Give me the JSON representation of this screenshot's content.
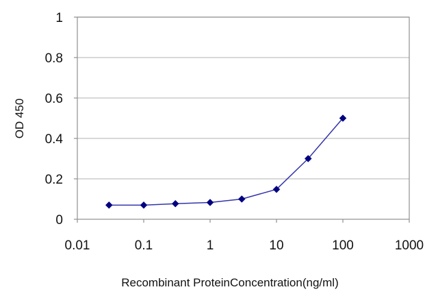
{
  "chart_data": {
    "type": "line",
    "xscale": "log",
    "xlim": [
      0.01,
      1000
    ],
    "ylim": [
      0,
      1
    ],
    "xticks": [
      0.01,
      0.1,
      1,
      10,
      100,
      1000
    ],
    "xtick_labels": [
      "0.01",
      "0.1",
      "1",
      "10",
      "100",
      "1000"
    ],
    "yticks": [
      0,
      0.2,
      0.4,
      0.6,
      0.8,
      1
    ],
    "ytick_labels": [
      "0",
      "0.2",
      "0.4",
      "0.6",
      "0.8",
      "1"
    ],
    "xlabel": "Recombinant ProteinConcentration(ng/ml)",
    "ylabel": "OD 450",
    "grid": {
      "horizontal": true,
      "vertical": false
    },
    "legend": "none",
    "series": [
      {
        "x": [
          0.03,
          0.1,
          0.3,
          1,
          3,
          10,
          30,
          100
        ],
        "y": [
          0.07,
          0.07,
          0.077,
          0.083,
          0.1,
          0.148,
          0.3,
          0.5
        ],
        "color": "#3333aa",
        "marker_color": "#000080",
        "marker": "diamond"
      }
    ],
    "colors": {
      "gridline": "#c0c0c0",
      "axis": "#909090"
    }
  }
}
